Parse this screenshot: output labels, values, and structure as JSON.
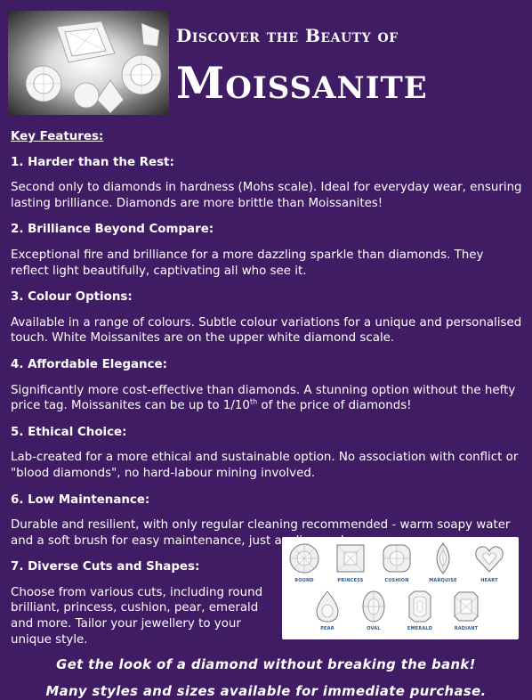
{
  "header": {
    "subtitle": "Discover the Beauty of",
    "title": "Moissanite"
  },
  "key_features_label": "Key Features:",
  "features": [
    {
      "heading": "1. Harder than the Rest:",
      "text": "Second only to diamonds in hardness (Mohs scale). Ideal for everyday wear, ensuring lasting brilliance. Diamonds are more brittle than Moissanites!"
    },
    {
      "heading": "2. Brilliance Beyond Compare:",
      "text": "Exceptional fire and brilliance for a more dazzling sparkle than diamonds. They reflect light beautifully, captivating all who see it."
    },
    {
      "heading": "3. Colour Options:",
      "text": "Available in a range of colours. Subtle colour variations for a unique and personalised touch. White Moissanites are on the upper white diamond scale."
    },
    {
      "heading": "4. Affordable Elegance:",
      "text_before": "Significantly more cost-effective than diamonds. A stunning option without the hefty price tag. Moissanites can be up to 1/10",
      "text_sup": "th",
      "text_after": " of the price of diamonds!"
    },
    {
      "heading": "5. Ethical Choice:",
      "text": "Lab-created for a more ethical and sustainable option. No association with conflict or \"blood diamonds\", no hard-labour mining involved."
    },
    {
      "heading": "6. Low Maintenance:",
      "text": "Durable and resilient, with only regular cleaning recommended - warm soapy water and a soft brush for easy maintenance, just as diamonds."
    },
    {
      "heading": "7. Diverse Cuts and Shapes:",
      "text": "Choose from various cuts, including round brilliant, princess, cushion, pear, emerald and more. Tailor your jewellery to your unique style."
    }
  ],
  "cuts": [
    "ROUND",
    "PRINCESS",
    "CUSHION",
    "MARQUISE",
    "HEART",
    "PEAR",
    "OVAL",
    "EMERALD",
    "RADIANT"
  ],
  "footer": {
    "line1": "Get the look of a diamond without breaking the bank!",
    "line2": "Many styles and sizes available for immediate purchase."
  }
}
